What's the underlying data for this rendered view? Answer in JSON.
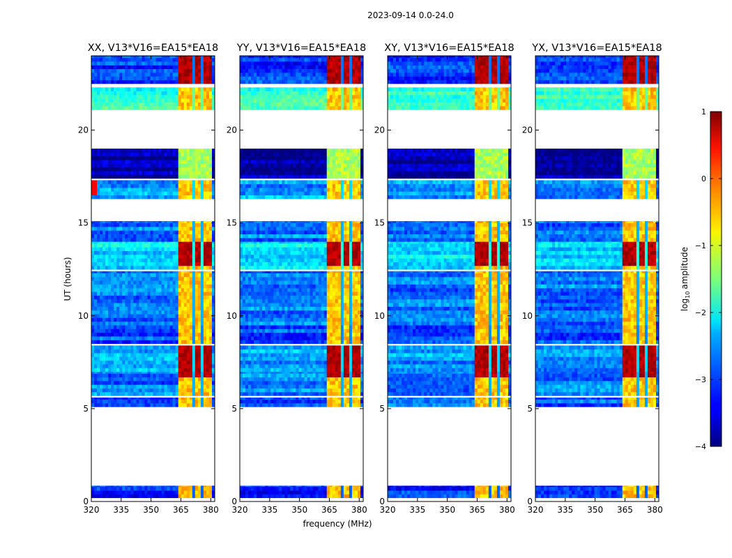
{
  "chart_data": {
    "type": "heatmap",
    "suptitle": "2023-09-14 0.0-24.0",
    "xlabel": "frequency (MHz)",
    "ylabel": "UT (hours)",
    "xlim": [
      320,
      382
    ],
    "ylim": [
      0,
      24
    ],
    "xticks": [
      "320",
      "335",
      "350",
      "365",
      "380"
    ],
    "xtick_values": [
      320,
      335,
      350,
      365,
      380
    ],
    "yticks": [
      "0",
      "5",
      "10",
      "15",
      "20"
    ],
    "ytick_values": [
      0,
      5,
      10,
      15,
      20
    ],
    "colorbar": {
      "label": "amplitude",
      "label_prefix": "log",
      "label_sub": "10",
      "range": [
        -4,
        1
      ],
      "ticks": [
        "−4",
        "−3",
        "−2",
        "−1",
        "0",
        "1"
      ],
      "tick_values": [
        -4,
        -3,
        -2,
        -1,
        0,
        1
      ]
    },
    "rfi_band_mhz": [
      363,
      380
    ],
    "rfi_channels_mhz": [
      [
        363,
        366.2
      ],
      [
        367.2,
        370.8
      ],
      [
        371.8,
        375.6
      ],
      [
        376.4,
        380
      ]
    ],
    "data_blocks_ut": [
      {
        "start": 0.2,
        "end": 0.85,
        "level": -3.2
      },
      {
        "start": 5.1,
        "end": 5.6,
        "level": -2.9
      },
      {
        "start": 5.7,
        "end": 7.0,
        "level": -2.8
      },
      {
        "start": 7.0,
        "end": 8.4,
        "level": -2.6
      },
      {
        "start": 8.5,
        "end": 9.5,
        "level": -3.0
      },
      {
        "start": 9.5,
        "end": 12.4,
        "level": -2.8
      },
      {
        "start": 12.5,
        "end": 14.0,
        "level": -2.3
      },
      {
        "start": 14.0,
        "end": 15.1,
        "level": -2.8
      },
      {
        "start": 16.3,
        "end": 17.3,
        "level": -2.6
      },
      {
        "start": 17.4,
        "end": 19.0,
        "level": -3.8
      },
      {
        "start": 21.1,
        "end": 22.3,
        "level": -1.9
      },
      {
        "start": 22.5,
        "end": 24.0,
        "level": -3.1
      }
    ],
    "rfi_strong_ut": [
      [
        6.6,
        8.4
      ],
      [
        12.6,
        14.0
      ],
      [
        22.5,
        24.0
      ]
    ],
    "panels": [
      {
        "title": "XX, V13*V16=EA15*EA18",
        "rfi_low_band_hot": true
      },
      {
        "title": "YY, V13*V16=EA15*EA18",
        "rfi_low_band_hot": false
      },
      {
        "title": "XY, V13*V16=EA15*EA18",
        "rfi_low_band_hot": false
      },
      {
        "title": "YX, V13*V16=EA15*EA18",
        "rfi_low_band_hot": false
      }
    ]
  }
}
